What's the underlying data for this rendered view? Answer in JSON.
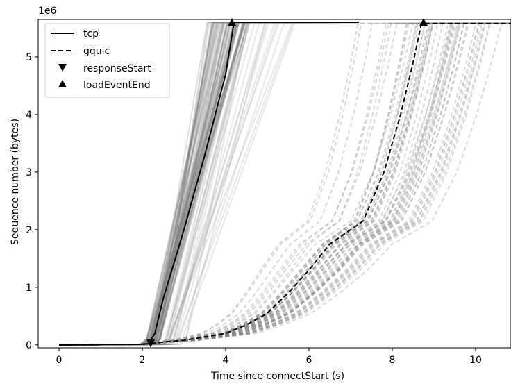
{
  "chart_data": {
    "type": "line",
    "xlabel": "Time since connectStart (s)",
    "ylabel": "Sequence number (bytes)",
    "y_offset_text": "1e6",
    "xlim": [
      -0.5,
      10.85
    ],
    "ylim": [
      -0.05,
      5.65
    ],
    "y_unit_multiplier": 1000000,
    "x_ticks": [
      0,
      2,
      4,
      6,
      8,
      10
    ],
    "y_ticks": [
      0,
      1,
      2,
      3,
      4,
      5
    ],
    "grid": false,
    "legend": {
      "position": "upper-left",
      "entries": [
        {
          "label": "tcp",
          "style": "solid-line"
        },
        {
          "label": "gquic",
          "style": "dashed-line"
        },
        {
          "label": "responseStart",
          "style": "down-triangle-marker"
        },
        {
          "label": "loadEventEnd",
          "style": "up-triangle-marker"
        }
      ]
    },
    "colors": {
      "highlight": "#000000",
      "background_runs": "#808080"
    },
    "series": [
      {
        "name": "tcp",
        "style": "solid",
        "x": [
          0,
          1.9,
          2.15,
          2.3,
          2.5,
          3.0,
          3.5,
          4.0,
          4.2,
          7.2
        ],
        "y": [
          0,
          0.01,
          0.02,
          0.2,
          0.8,
          2.0,
          3.3,
          4.7,
          5.6,
          5.6
        ],
        "responseStart": {
          "x": 2.2,
          "y": 0.02
        },
        "loadEventEnd": {
          "x": 4.15,
          "y": 5.6
        }
      },
      {
        "name": "gquic",
        "style": "dashed",
        "x": [
          0,
          2.0,
          2.5,
          3.0,
          4.0,
          4.5,
          5.0,
          5.5,
          6.0,
          6.5,
          7.0,
          7.3,
          7.8,
          8.2,
          8.5,
          8.7,
          10.85
        ],
        "y": [
          0,
          0.01,
          0.05,
          0.08,
          0.2,
          0.35,
          0.55,
          0.9,
          1.3,
          1.75,
          2.0,
          2.15,
          3.0,
          4.0,
          4.9,
          5.58,
          5.58
        ],
        "responseStart": {
          "x": 2.2,
          "y": 0.02
        },
        "loadEventEnd": {
          "x": 8.75,
          "y": 5.6
        }
      }
    ]
  }
}
